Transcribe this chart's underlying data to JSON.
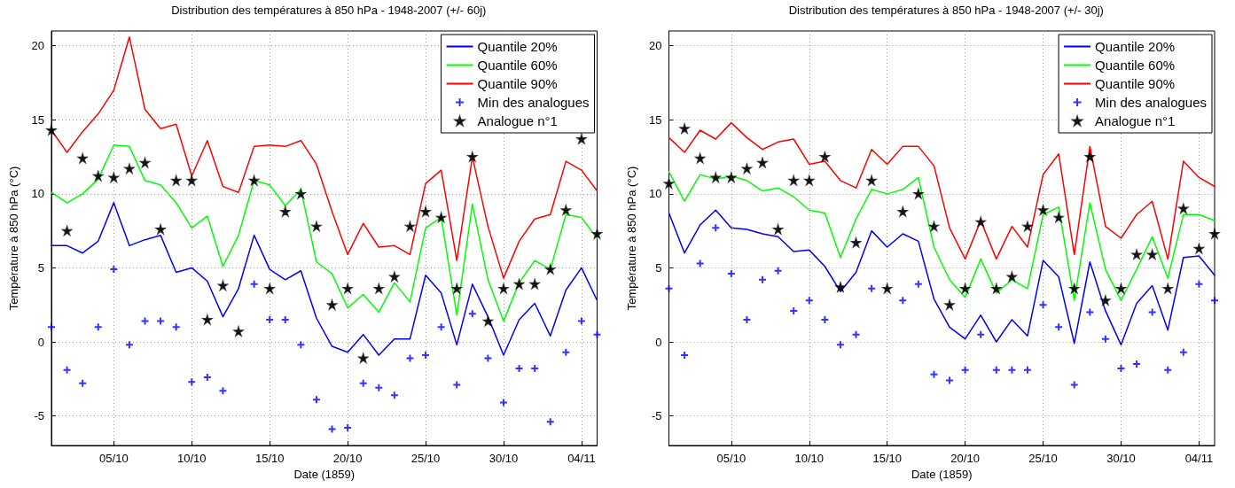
{
  "chart_data": [
    {
      "type": "line",
      "title": "Distribution des températures à 850 hPa - 1948-2007 (+/- 60j)",
      "xlabel": "Date (1859)",
      "ylabel": "Température à 850 hPa (°C)",
      "x": [
        "1859-10-01",
        "1859-10-02",
        "1859-10-03",
        "1859-10-04",
        "1859-10-05",
        "1859-10-06",
        "1859-10-07",
        "1859-10-08",
        "1859-10-09",
        "1859-10-10",
        "1859-10-11",
        "1859-10-12",
        "1859-10-13",
        "1859-10-14",
        "1859-10-15",
        "1859-10-16",
        "1859-10-17",
        "1859-10-18",
        "1859-10-19",
        "1859-10-20",
        "1859-10-21",
        "1859-10-22",
        "1859-10-23",
        "1859-10-24",
        "1859-10-25",
        "1859-10-26",
        "1859-10-27",
        "1859-10-28",
        "1859-10-29",
        "1859-10-30",
        "1859-10-31",
        "1859-11-01",
        "1859-11-02",
        "1859-11-03",
        "1859-11-04",
        "1859-11-05"
      ],
      "series": [
        {
          "name": "Quantile 20%",
          "color": "#0000ff",
          "values": [
            6.5,
            6.5,
            6.0,
            6.8,
            9.4,
            6.5,
            6.9,
            7.2,
            4.7,
            5.0,
            4.1,
            1.7,
            3.6,
            7.2,
            4.9,
            4.2,
            4.8,
            1.6,
            -0.3,
            -0.7,
            0.5,
            -0.9,
            0.2,
            0.2,
            4.5,
            3.3,
            -0.2,
            3.9,
            1.7,
            -0.9,
            1.5,
            2.6,
            0.4,
            3.5,
            5.0,
            2.8
          ]
        },
        {
          "name": "Quantile 60%",
          "color": "#00ff00",
          "values": [
            10.1,
            9.4,
            10.0,
            11.0,
            13.3,
            13.2,
            10.9,
            10.6,
            9.4,
            7.7,
            8.5,
            5.1,
            7.2,
            10.9,
            10.6,
            9.2,
            10.3,
            5.4,
            4.6,
            2.3,
            3.2,
            2.0,
            4.0,
            2.7,
            7.7,
            8.4,
            1.8,
            9.3,
            4.2,
            1.4,
            4.0,
            5.5,
            4.9,
            8.6,
            8.4,
            7.0
          ]
        },
        {
          "name": "Quantile 90%",
          "color": "#ff0000",
          "values": [
            14.3,
            12.8,
            14.2,
            15.4,
            17.0,
            20.6,
            15.7,
            14.4,
            14.7,
            11.2,
            13.6,
            10.5,
            10.1,
            13.2,
            13.3,
            13.2,
            13.6,
            12.0,
            8.8,
            5.9,
            8.0,
            6.4,
            6.5,
            5.9,
            10.7,
            11.6,
            5.5,
            12.5,
            7.8,
            4.3,
            6.8,
            8.3,
            8.6,
            12.2,
            11.6,
            10.2
          ]
        },
        {
          "name": "Min des analogues",
          "type": "scatter",
          "marker": "cross",
          "color": "#0000ff",
          "values": [
            1.0,
            -1.9,
            -2.8,
            1.0,
            4.9,
            -0.2,
            1.4,
            1.4,
            1.0,
            -2.7,
            -2.4,
            -3.3,
            null,
            3.9,
            1.5,
            1.5,
            -0.2,
            -3.9,
            -5.9,
            -5.8,
            -2.8,
            -3.1,
            -3.6,
            -1.1,
            -0.9,
            1.0,
            -2.9,
            1.9,
            -1.1,
            -4.1,
            -1.8,
            -1.8,
            -5.4,
            -0.7,
            1.4,
            0.5
          ]
        },
        {
          "name": "Analogue n°1",
          "type": "scatter",
          "marker": "star",
          "color": "#000000",
          "values": [
            14.3,
            7.5,
            12.4,
            11.2,
            11.1,
            11.7,
            12.1,
            7.6,
            10.9,
            10.9,
            1.5,
            3.8,
            0.7,
            10.9,
            3.6,
            8.8,
            10.0,
            7.8,
            2.5,
            3.6,
            -1.1,
            3.6,
            4.4,
            7.8,
            8.8,
            8.4,
            3.6,
            12.5,
            1.4,
            3.6,
            3.9,
            3.9,
            4.9,
            8.9,
            13.7,
            7.3
          ]
        }
      ],
      "xlim": [
        "1859-10-01",
        "1859-11-05"
      ],
      "xticks": [
        {
          "value": "1859-10-05",
          "label": "05/10"
        },
        {
          "value": "1859-10-10",
          "label": "10/10"
        },
        {
          "value": "1859-10-15",
          "label": "15/10"
        },
        {
          "value": "1859-10-20",
          "label": "20/10"
        },
        {
          "value": "1859-10-25",
          "label": "25/10"
        },
        {
          "value": "1859-10-30",
          "label": "30/10"
        },
        {
          "value": "1859-11-04",
          "label": "04/11"
        }
      ],
      "ylim": [
        -7,
        21
      ],
      "yticks": [
        -5,
        0,
        5,
        10,
        15,
        20
      ],
      "grid": true,
      "legend": "top right"
    },
    {
      "type": "line",
      "title": "Distribution des températures à 850 hPa - 1948-2007 (+/- 30j)",
      "xlabel": "Date (1859)",
      "ylabel": "Température à 850 hPa (°C)",
      "x": [
        "1859-10-01",
        "1859-10-02",
        "1859-10-03",
        "1859-10-04",
        "1859-10-05",
        "1859-10-06",
        "1859-10-07",
        "1859-10-08",
        "1859-10-09",
        "1859-10-10",
        "1859-10-11",
        "1859-10-12",
        "1859-10-13",
        "1859-10-14",
        "1859-10-15",
        "1859-10-16",
        "1859-10-17",
        "1859-10-18",
        "1859-10-19",
        "1859-10-20",
        "1859-10-21",
        "1859-10-22",
        "1859-10-23",
        "1859-10-24",
        "1859-10-25",
        "1859-10-26",
        "1859-10-27",
        "1859-10-28",
        "1859-10-29",
        "1859-10-30",
        "1859-10-31",
        "1859-11-01",
        "1859-11-02",
        "1859-11-03",
        "1859-11-04",
        "1859-11-05"
      ],
      "series": [
        {
          "name": "Quantile 20%",
          "color": "#0000ff",
          "values": [
            8.7,
            6.0,
            7.9,
            8.9,
            7.7,
            7.6,
            7.3,
            7.1,
            6.1,
            6.2,
            5.1,
            3.4,
            4.7,
            7.5,
            6.4,
            7.3,
            6.8,
            2.9,
            1.0,
            0.2,
            1.8,
            0.0,
            1.5,
            0.4,
            5.5,
            4.4,
            -0.1,
            5.4,
            2.1,
            -0.2,
            2.6,
            3.8,
            0.8,
            5.7,
            5.8,
            4.5
          ]
        },
        {
          "name": "Quantile 60%",
          "color": "#00ff00",
          "values": [
            11.5,
            9.5,
            11.3,
            11.0,
            11.2,
            10.9,
            10.2,
            10.4,
            9.8,
            8.9,
            8.7,
            5.7,
            8.3,
            10.3,
            10.0,
            10.3,
            11.1,
            6.4,
            4.2,
            3.0,
            5.6,
            3.3,
            4.2,
            3.6,
            8.6,
            9.1,
            2.8,
            9.4,
            4.9,
            2.8,
            4.9,
            7.1,
            4.3,
            8.6,
            8.6,
            8.2
          ]
        },
        {
          "name": "Quantile 90%",
          "color": "#ff0000",
          "values": [
            13.8,
            12.8,
            14.3,
            13.7,
            14.8,
            13.8,
            13.0,
            13.5,
            13.7,
            12.0,
            12.2,
            10.9,
            10.4,
            13.0,
            12.0,
            13.2,
            13.2,
            11.9,
            7.7,
            5.6,
            8.2,
            5.6,
            7.8,
            6.4,
            11.3,
            12.7,
            5.9,
            13.2,
            7.8,
            7.0,
            8.6,
            9.5,
            5.6,
            12.2,
            11.1,
            10.5
          ]
        },
        {
          "name": "Min des analogues",
          "type": "scatter",
          "marker": "cross",
          "color": "#0000ff",
          "values": [
            3.6,
            -0.9,
            5.3,
            7.7,
            4.6,
            1.5,
            4.2,
            4.8,
            2.1,
            2.8,
            1.5,
            -0.2,
            0.5,
            3.6,
            null,
            2.8,
            3.9,
            -2.2,
            -2.6,
            -1.9,
            0.5,
            -1.9,
            -1.9,
            -1.9,
            2.5,
            1.0,
            -2.9,
            2.0,
            0.2,
            -1.8,
            -1.5,
            2.0,
            -1.9,
            -0.7,
            3.9,
            2.8
          ]
        },
        {
          "name": "Analogue n°1",
          "type": "scatter",
          "marker": "star",
          "color": "#000000",
          "values": [
            10.7,
            14.4,
            12.4,
            11.1,
            11.1,
            11.7,
            12.1,
            7.6,
            10.9,
            10.9,
            12.5,
            3.7,
            6.7,
            10.9,
            3.6,
            8.8,
            10.0,
            7.8,
            2.5,
            3.6,
            8.1,
            3.6,
            4.4,
            7.8,
            8.9,
            8.4,
            3.6,
            12.5,
            2.8,
            3.6,
            5.9,
            5.9,
            3.6,
            9.0,
            6.3,
            7.3
          ]
        }
      ],
      "xlim": [
        "1859-10-01",
        "1859-11-05"
      ],
      "xticks": [
        {
          "value": "1859-10-05",
          "label": "05/10"
        },
        {
          "value": "1859-10-10",
          "label": "10/10"
        },
        {
          "value": "1859-10-15",
          "label": "15/10"
        },
        {
          "value": "1859-10-20",
          "label": "20/10"
        },
        {
          "value": "1859-10-25",
          "label": "25/10"
        },
        {
          "value": "1859-10-30",
          "label": "30/10"
        },
        {
          "value": "1859-11-04",
          "label": "04/11"
        }
      ],
      "ylim": [
        -7,
        21
      ],
      "yticks": [
        -5,
        0,
        5,
        10,
        15,
        20
      ],
      "grid": true,
      "legend": "top right"
    }
  ]
}
